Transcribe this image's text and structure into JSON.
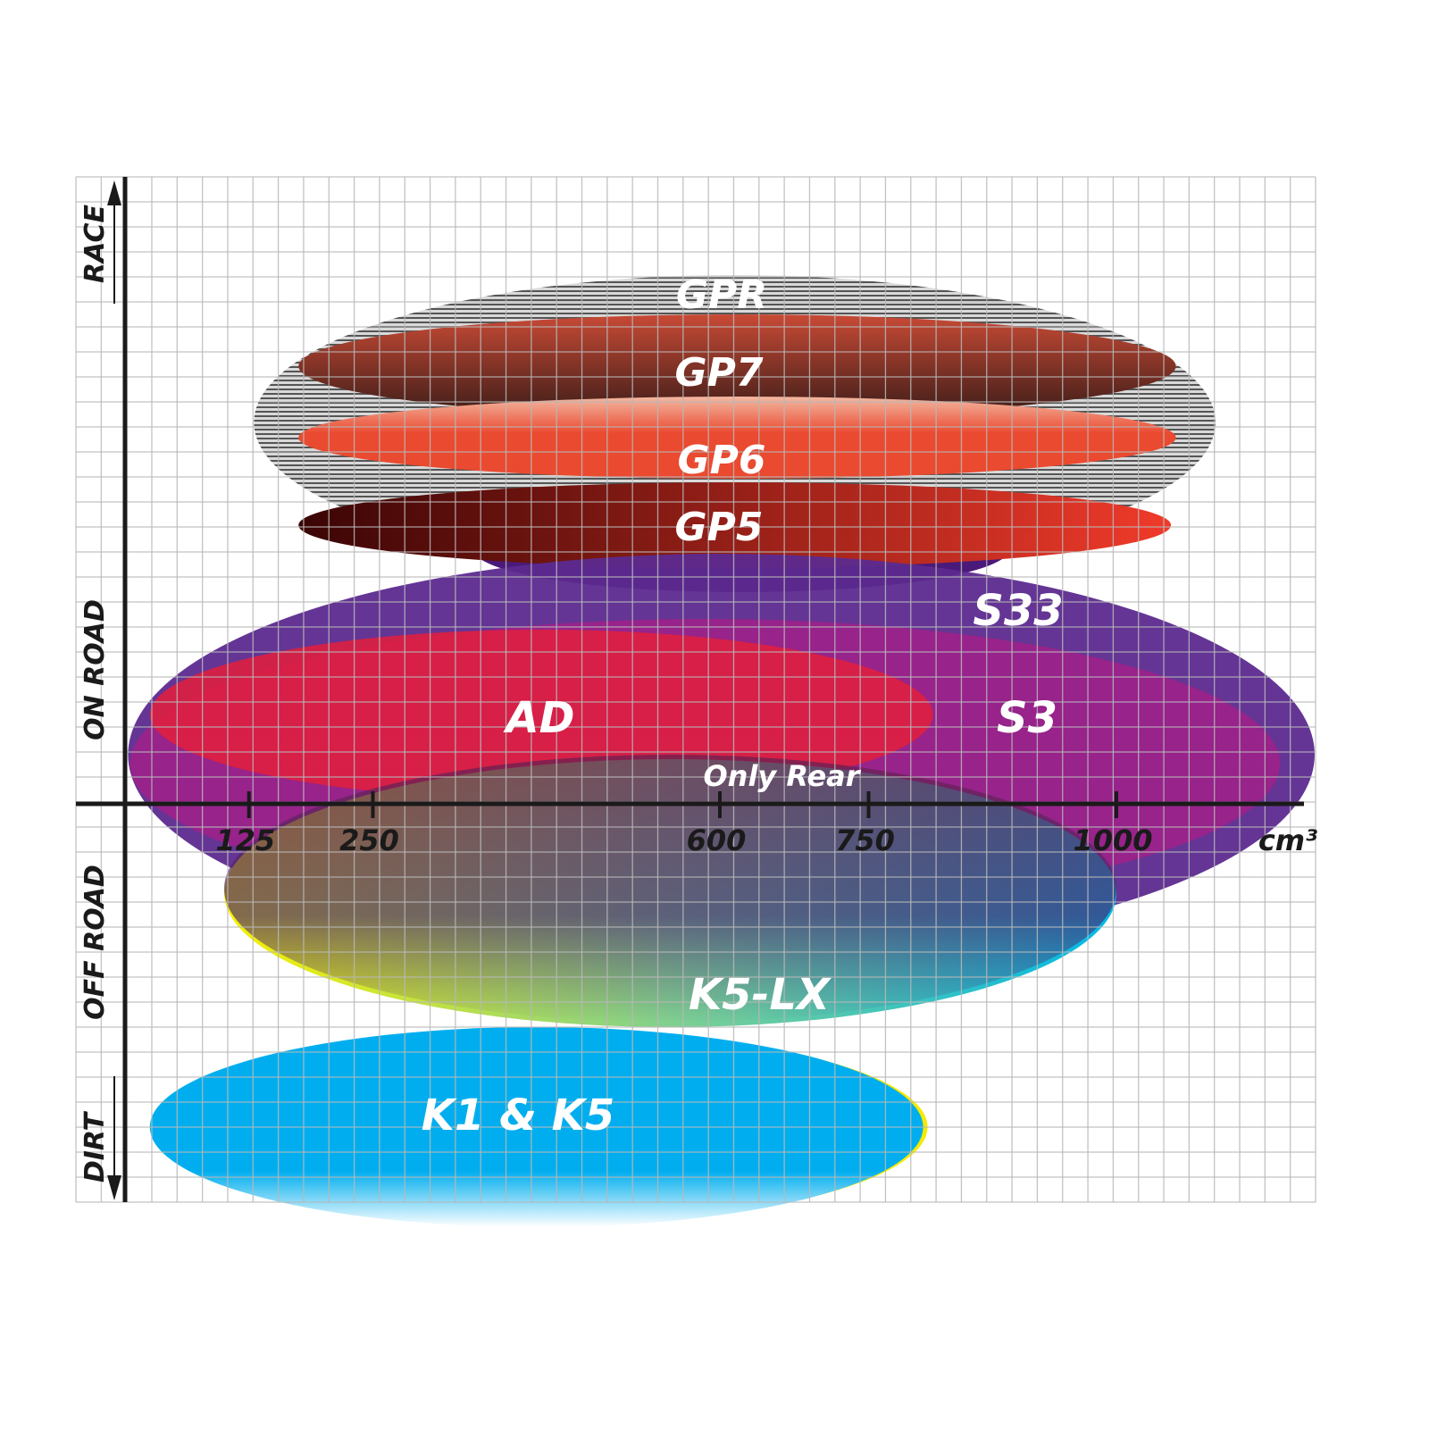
{
  "chart_data": {
    "type": "positioning-ellipses",
    "x_axis": {
      "unit": "cm³",
      "ticks": [
        125,
        250,
        600,
        750,
        1000
      ],
      "tick_labels": [
        "125",
        "250",
        "600",
        "750",
        "1000"
      ]
    },
    "y_axis": {
      "labels": [
        "RACE",
        "ON ROAD",
        "OFF ROAD",
        "DIRT"
      ]
    },
    "grid": true,
    "series": [
      {
        "name": "GPR",
        "cc_range": [
          130,
          1100
        ],
        "color": "#b0b0b0"
      },
      {
        "name": "GP7",
        "cc_range": [
          175,
          1060
        ],
        "color": "#7a3a2c"
      },
      {
        "name": "GP6",
        "cc_range": [
          175,
          1060
        ],
        "color": "#e8452f"
      },
      {
        "name": "GP5",
        "cc_range": [
          175,
          1055
        ],
        "color": "#a3200f"
      },
      {
        "name": "S33",
        "cc_range": [
          3,
          1200
        ],
        "color": "#5c2a8f"
      },
      {
        "name": "S3",
        "cc_range": [
          5,
          1165
        ],
        "color": "#a0208a"
      },
      {
        "name": "AD",
        "cc_range": [
          25,
          815
        ],
        "color": "#e01f3d"
      },
      {
        "name": "Only Rear",
        "cc_range": [
          100,
          1000
        ],
        "color": "#8c2a6a"
      },
      {
        "name": "K5-LX",
        "cc_range": [
          100,
          1000
        ],
        "color": "#20c0d8"
      },
      {
        "name": "K1 & K5",
        "cc_range": [
          25,
          805
        ],
        "color": "#00aeef"
      }
    ]
  }
}
